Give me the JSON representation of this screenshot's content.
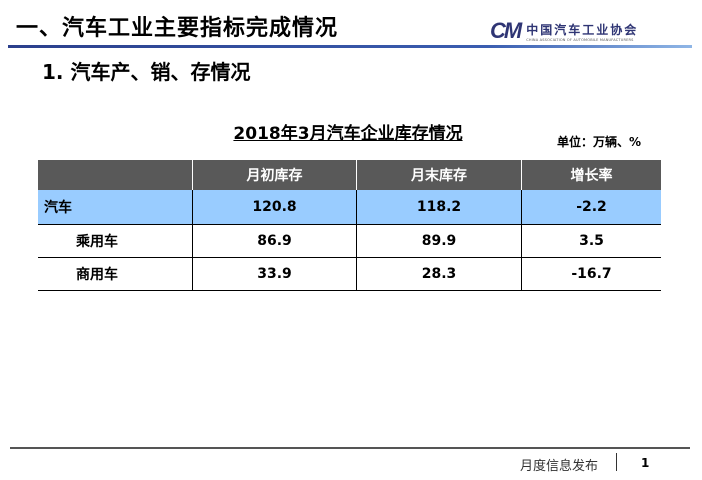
{
  "header": {
    "title": "一、汽车工业主要指标完成情况",
    "logo_mark": "CM",
    "logo_cn": "中国汽车工业协会",
    "logo_en": "CHINA ASSOCIATION OF AUTOMOBILE MANUFACTURERS"
  },
  "subtitle": "1. 汽车产、销、存情况",
  "table": {
    "caption": "2018年3月汽车企业库存情况",
    "unit": "单位：万辆、%",
    "headers": [
      "",
      "月初库存",
      "月末库存",
      "增长率"
    ],
    "rows": [
      {
        "name": "汽车",
        "start": "120.8",
        "end": "118.2",
        "growth": "-2.2"
      },
      {
        "name": "乘用车",
        "start": "86.9",
        "end": "89.9",
        "growth": "3.5"
      },
      {
        "name": "商用车",
        "start": "33.9",
        "end": "28.3",
        "growth": "-16.7"
      }
    ]
  },
  "footer": {
    "text": "月度信息发布",
    "page": "1"
  },
  "colors": {
    "header_bg": "#595959",
    "highlight_row": "#99ccff",
    "brand": "#2f3574"
  }
}
